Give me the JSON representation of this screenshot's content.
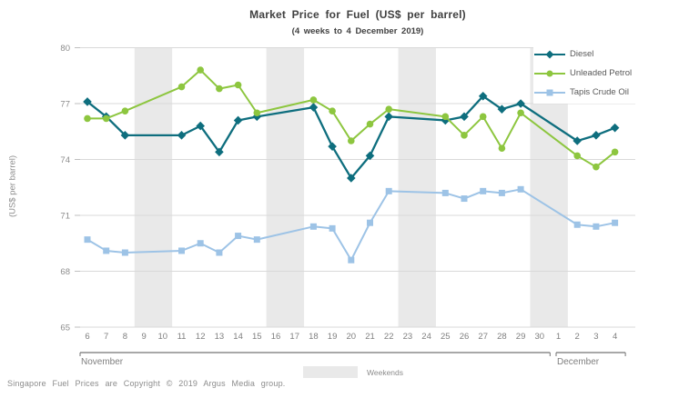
{
  "title": "Market Price for Fuel (US$ per barrel)",
  "subtitle": "(4 weeks to 4 December 2019)",
  "y_axis_title": "(US$ per barrel)",
  "footer": "Singapore Fuel Prices are Copyright © 2019 Argus Media group.",
  "weekends_label": "Weekends",
  "colors": {
    "diesel": "#0e6e7e",
    "unleaded_petrol": "#8dc63f",
    "tapis_crude_oil": "#9dc3e6",
    "gridline": "#d9d9d9",
    "weekend_band": "#e9e9e9",
    "axis_text": "#8c8c8c",
    "day_text": "#7f7f7f",
    "month_line": "#737373",
    "title_text": "#404040",
    "legend_text": "#595959"
  },
  "chart_data": {
    "type": "line",
    "title": "Market Price for Fuel (US$ per barrel)",
    "subtitle": "(4 weeks to 4 December 2019)",
    "ylabel": "(US$ per barrel)",
    "ylim": [
      65,
      80
    ],
    "yticks": [
      65,
      68,
      71,
      74,
      77,
      80
    ],
    "grid": true,
    "legend_position": "top-right",
    "x_axis": {
      "days": [
        "6",
        "7",
        "8",
        "9",
        "10",
        "11",
        "12",
        "13",
        "14",
        "15",
        "16",
        "17",
        "18",
        "19",
        "20",
        "21",
        "22",
        "23",
        "24",
        "25",
        "26",
        "27",
        "28",
        "29",
        "30",
        "1",
        "2",
        "3",
        "4"
      ],
      "months": [
        {
          "label": "November",
          "span": [
            0,
            24
          ]
        },
        {
          "label": "December",
          "span": [
            25,
            28
          ]
        }
      ]
    },
    "weekend_bands": [
      [
        3,
        4
      ],
      [
        10,
        11
      ],
      [
        17,
        18
      ],
      [
        24,
        25
      ]
    ],
    "weekday_indices": [
      0,
      1,
      2,
      5,
      6,
      7,
      8,
      9,
      12,
      13,
      14,
      15,
      16,
      19,
      20,
      21,
      22,
      23,
      26,
      27,
      28
    ],
    "weekday_dates": [
      "6 Nov",
      "7 Nov",
      "8 Nov",
      "11 Nov",
      "12 Nov",
      "13 Nov",
      "14 Nov",
      "15 Nov",
      "18 Nov",
      "19 Nov",
      "20 Nov",
      "21 Nov",
      "22 Nov",
      "25 Nov",
      "26 Nov",
      "27 Nov",
      "28 Nov",
      "29 Nov",
      "2 Dec",
      "3 Dec",
      "4 Dec"
    ],
    "series": [
      {
        "name": "Diesel",
        "color": "#0e6e7e",
        "marker": "diamond",
        "values": [
          77.1,
          76.3,
          75.3,
          75.3,
          75.8,
          74.4,
          76.1,
          76.3,
          76.8,
          74.7,
          73.0,
          74.2,
          76.3,
          76.1,
          76.3,
          77.4,
          76.7,
          77.0,
          75.0,
          75.3,
          75.7
        ]
      },
      {
        "name": "Unleaded Petrol",
        "color": "#8dc63f",
        "marker": "circle",
        "values": [
          76.2,
          76.2,
          76.6,
          77.9,
          78.8,
          77.8,
          78.0,
          76.5,
          77.2,
          76.6,
          75.0,
          75.9,
          76.7,
          76.3,
          75.3,
          76.3,
          74.6,
          76.5,
          74.2,
          73.6,
          74.4
        ]
      },
      {
        "name": "Tapis Crude Oil",
        "color": "#9dc3e6",
        "marker": "square",
        "values": [
          69.7,
          69.1,
          69.0,
          69.1,
          69.5,
          69.0,
          69.9,
          69.7,
          70.4,
          70.3,
          68.6,
          70.6,
          72.3,
          72.2,
          71.9,
          72.3,
          72.2,
          72.4,
          70.5,
          70.4,
          70.6
        ]
      }
    ]
  }
}
